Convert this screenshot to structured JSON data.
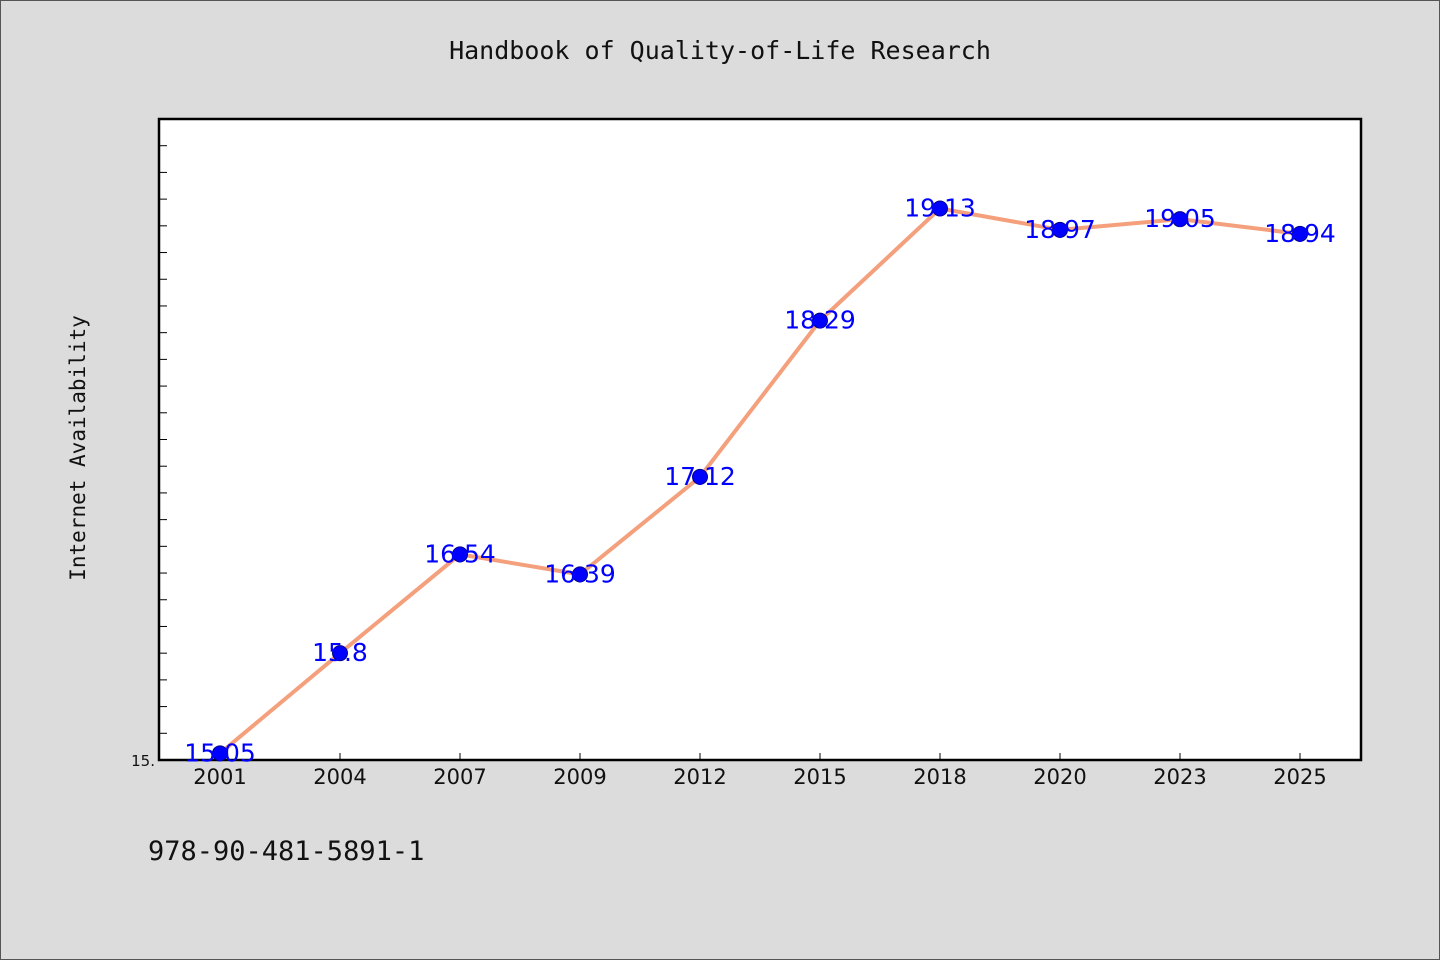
{
  "title": "Handbook of Quality-of-Life Research",
  "footer_text": "978-90-481-5891-1",
  "colors": {
    "background": "#dcdcdc",
    "plot_background": "#ffffff",
    "line": "#f4a07c",
    "marker": "#0000ff",
    "data_label": "#0000ff"
  },
  "chart_data": {
    "type": "line",
    "title": "Handbook of Quality-of-Life Research",
    "xlabel": "",
    "ylabel": "Internet Availability",
    "categories": [
      "2001",
      "2004",
      "2007",
      "2009",
      "2012",
      "2015",
      "2018",
      "2020",
      "2023",
      "2025"
    ],
    "series": [
      {
        "values": [
          15.05,
          15.8,
          16.54,
          16.39,
          17.12,
          18.29,
          19.13,
          18.97,
          19.05,
          18.94
        ],
        "labels": [
          "15.05",
          "15.8",
          "16.54",
          "16.39",
          "17.12",
          "18.29",
          "19.13",
          "18.97",
          "19.05",
          "18.94"
        ]
      }
    ],
    "ylim": [
      15.0,
      19.8
    ],
    "y_tick_label": "15.",
    "grid": false,
    "legend": "none"
  }
}
